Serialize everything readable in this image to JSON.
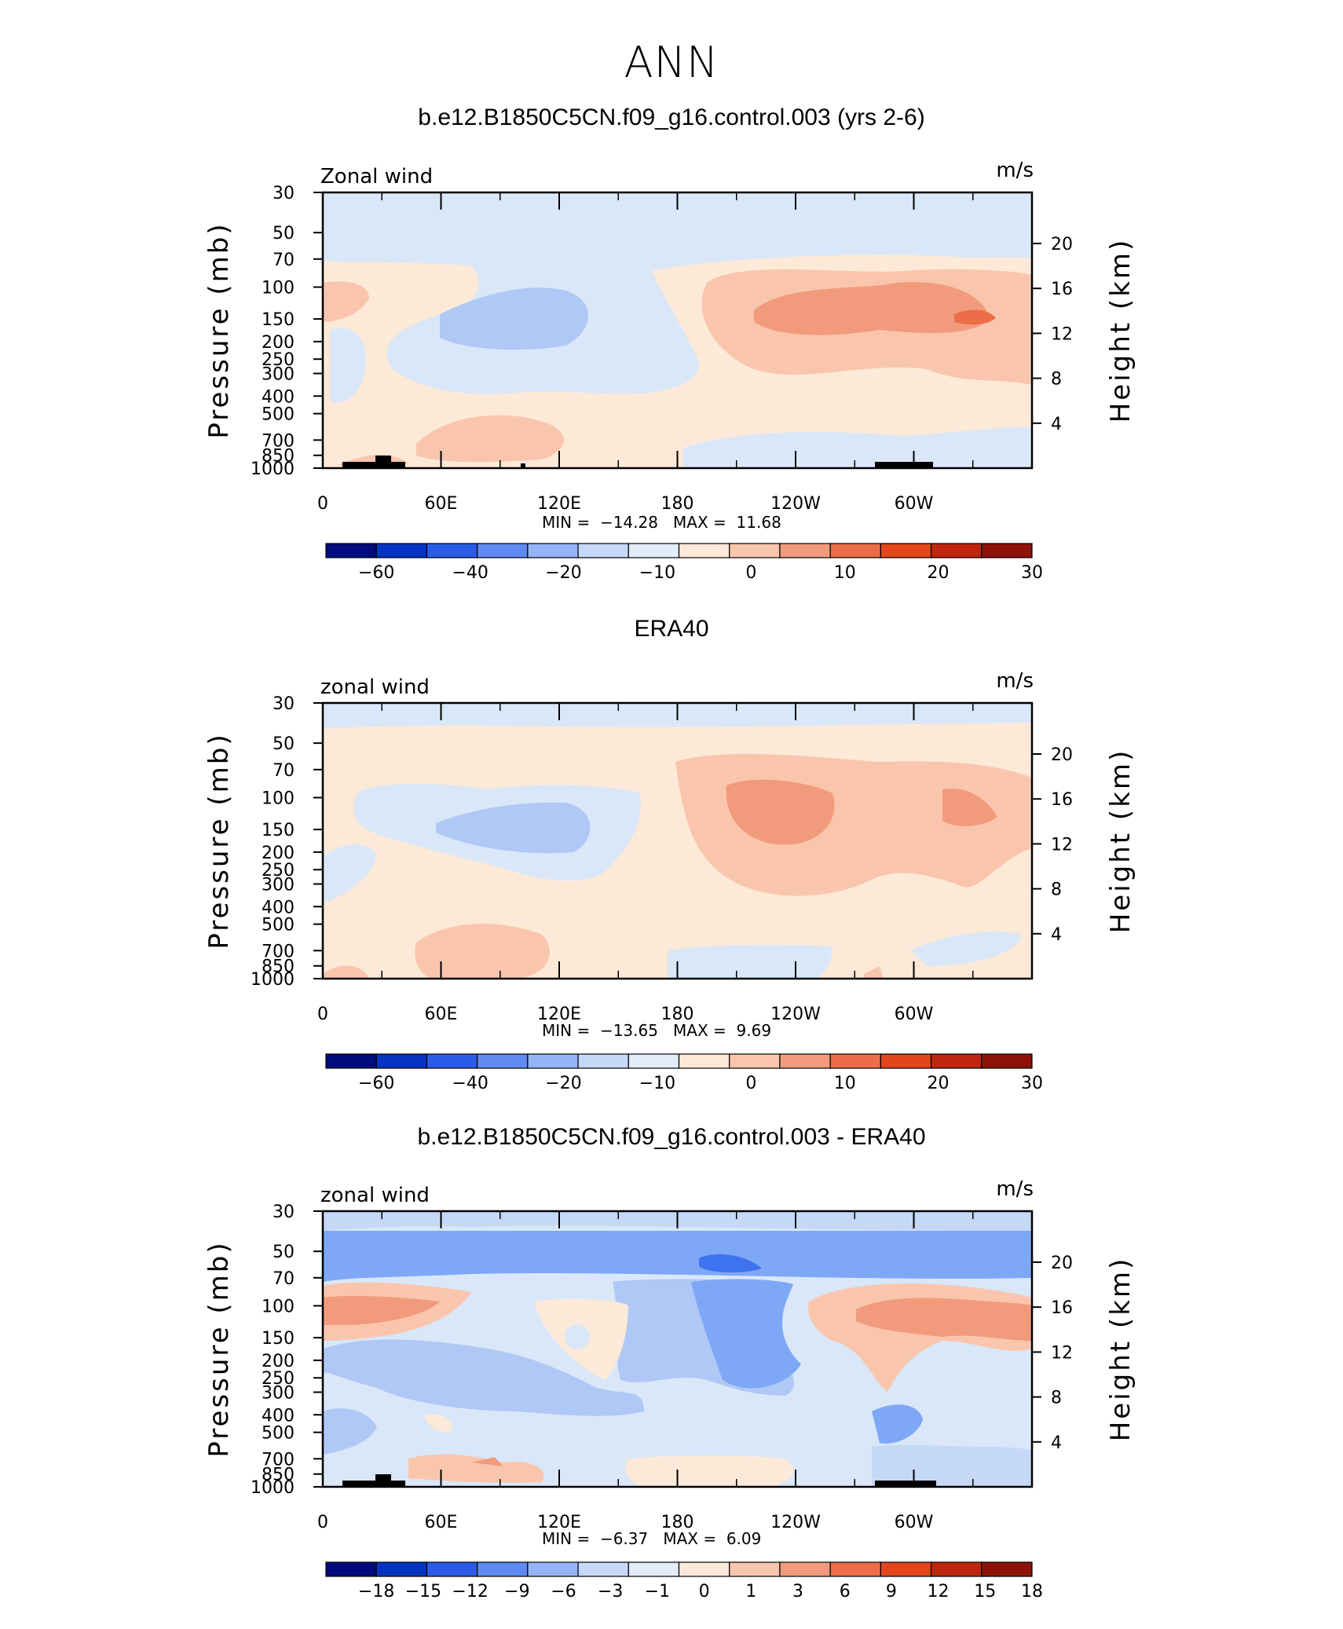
{
  "main_title": "ANN",
  "chart_data": [
    {
      "type": "heatmap",
      "title": "b.e12.B1850C5CN.f09_g16.control.003 (yrs 2-6)",
      "left_label": "Zonal wind",
      "right_label": "m/s",
      "ylabel": "Pressure (mb)",
      "ylabel_right": "Height (km)",
      "x_ticks": [
        "0",
        "60E",
        "120E",
        "180",
        "120W",
        "60W"
      ],
      "y_ticks": [
        "30",
        "50",
        "70",
        "100",
        "150",
        "200",
        "250",
        "300",
        "400",
        "500",
        "700",
        "850",
        "1000"
      ],
      "height_ticks": [
        "20",
        "16",
        "12",
        "8",
        "4"
      ],
      "min_label": "MIN =",
      "min_value": "−14.28",
      "max_label": "MAX =",
      "max_value": "11.68",
      "colorbar_labels": [
        "−60",
        "−40",
        "−20",
        "−10",
        "0",
        "10",
        "20",
        "30"
      ],
      "colorbar_colors": [
        "#000c7d",
        "#0533c2",
        "#2b5ce7",
        "#5f8af1",
        "#93b4f7",
        "#c6d8f8",
        "#e2ecfb",
        "#fde9d7",
        "#f9c6ad",
        "#f29b7c",
        "#ec6d47",
        "#e3451c",
        "#c0260e",
        "#8f1209"
      ]
    },
    {
      "type": "heatmap",
      "title": "ERA40",
      "left_label": "zonal wind",
      "right_label": "m/s",
      "ylabel": "Pressure (mb)",
      "ylabel_right": "Height (km)",
      "x_ticks": [
        "0",
        "60E",
        "120E",
        "180",
        "120W",
        "60W"
      ],
      "y_ticks": [
        "30",
        "50",
        "70",
        "100",
        "150",
        "200",
        "250",
        "300",
        "400",
        "500",
        "700",
        "850",
        "1000"
      ],
      "height_ticks": [
        "20",
        "16",
        "12",
        "8",
        "4"
      ],
      "min_label": "MIN =",
      "min_value": "−13.65",
      "max_label": "MAX =",
      "max_value": "9.69",
      "colorbar_labels": [
        "−60",
        "−40",
        "−20",
        "−10",
        "0",
        "10",
        "20",
        "30"
      ],
      "colorbar_colors": [
        "#000c7d",
        "#0533c2",
        "#2b5ce7",
        "#5f8af1",
        "#93b4f7",
        "#c6d8f8",
        "#e2ecfb",
        "#fde9d7",
        "#f9c6ad",
        "#f29b7c",
        "#ec6d47",
        "#e3451c",
        "#c0260e",
        "#8f1209"
      ]
    },
    {
      "type": "heatmap",
      "title": "b.e12.B1850C5CN.f09_g16.control.003 - ERA40",
      "left_label": "zonal wind",
      "right_label": "m/s",
      "ylabel": "Pressure (mb)",
      "ylabel_right": "Height (km)",
      "x_ticks": [
        "0",
        "60E",
        "120E",
        "180",
        "120W",
        "60W"
      ],
      "y_ticks": [
        "30",
        "50",
        "70",
        "100",
        "150",
        "200",
        "250",
        "300",
        "400",
        "500",
        "700",
        "850",
        "1000"
      ],
      "height_ticks": [
        "20",
        "16",
        "12",
        "8",
        "4"
      ],
      "min_label": "MIN =",
      "min_value": "−6.37",
      "max_label": "MAX =",
      "max_value": "6.09",
      "colorbar_labels": [
        "−18",
        "−15",
        "−12",
        "−9",
        "−6",
        "−3",
        "−1",
        "0",
        "1",
        "3",
        "6",
        "9",
        "12",
        "15",
        "18"
      ],
      "colorbar_colors": [
        "#000c7d",
        "#0533c2",
        "#2b5ce7",
        "#5f8af1",
        "#93b4f7",
        "#c6d8f8",
        "#e2ecfb",
        "#fde9d7",
        "#f9c6ad",
        "#f29b7c",
        "#ec6d47",
        "#e3451c",
        "#c0260e",
        "#8f1209"
      ]
    }
  ]
}
